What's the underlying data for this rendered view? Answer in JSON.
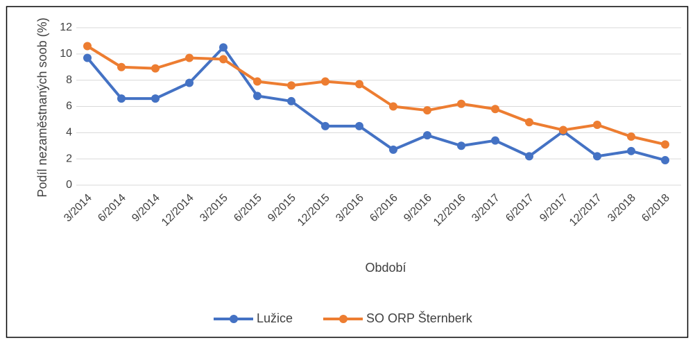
{
  "chart_data": {
    "type": "line",
    "x_label": "Období",
    "y_label": "Podíl nezaměstnaných soob (%)",
    "categories": [
      "3/2014",
      "6/2014",
      "9/2014",
      "12/2014",
      "3/2015",
      "6/2015",
      "9/2015",
      "12/2015",
      "3/2016",
      "6/2016",
      "9/2016",
      "12/2016",
      "3/2017",
      "6/2017",
      "9/2017",
      "12/2017",
      "3/2018",
      "6/2018"
    ],
    "series": [
      {
        "name": "Lužice",
        "color": "#4472c4",
        "values": [
          9.7,
          6.6,
          6.6,
          7.8,
          10.5,
          6.8,
          6.4,
          4.5,
          4.5,
          2.7,
          3.8,
          3.0,
          3.4,
          2.2,
          4.1,
          2.2,
          2.6,
          1.9
        ]
      },
      {
        "name": "SO ORP Šternberk",
        "color": "#ed7d31",
        "values": [
          10.6,
          9.0,
          8.9,
          9.7,
          9.6,
          7.9,
          7.6,
          7.9,
          7.7,
          6.0,
          5.7,
          6.2,
          5.8,
          4.8,
          4.2,
          4.6,
          3.7,
          3.1
        ]
      }
    ],
    "ylim": [
      0,
      12
    ],
    "yticks": [
      0,
      2,
      4,
      6,
      8,
      10,
      12
    ],
    "grid": true,
    "legend": "bottom"
  }
}
